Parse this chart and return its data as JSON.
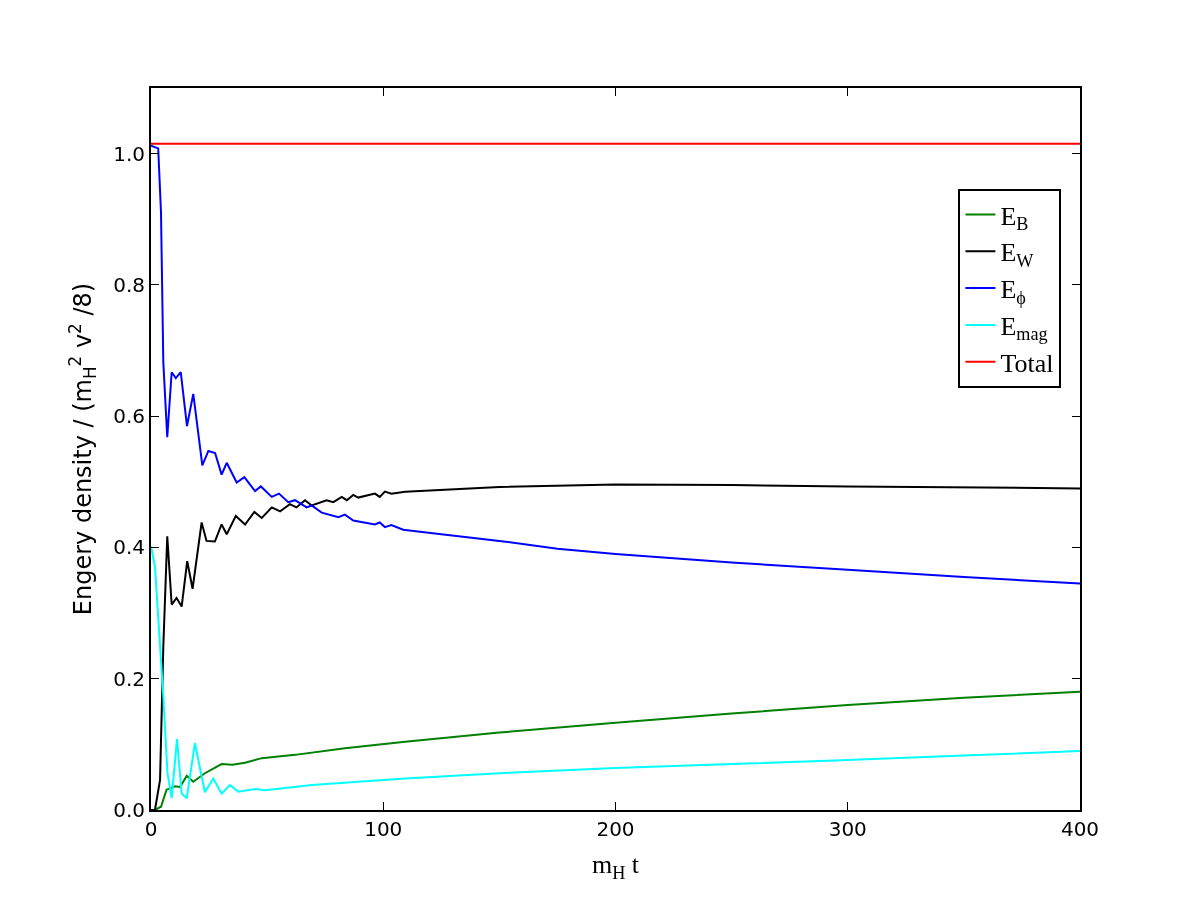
{
  "chart_data": {
    "type": "line",
    "xlabel": "m$_{H}$ t",
    "ylabel": "Engery density / (m$_{H}$$^{2}$ v$^{2}$ /8)",
    "xlim": [
      0,
      400
    ],
    "xticks": [
      0,
      100,
      200,
      300,
      400
    ],
    "ylim": [
      0,
      1.1
    ],
    "yticks": [
      {
        "value": 0,
        "label": "0.0"
      },
      {
        "value": 0.2,
        "label": "0.2"
      },
      {
        "value": 0.4,
        "label": "0.4"
      },
      {
        "value": 0.6,
        "label": "0.6"
      },
      {
        "value": 0.8,
        "label": "0.8"
      },
      {
        "value": 1,
        "label": "1.0"
      }
    ],
    "legend": "top right",
    "marker": "none",
    "line_style": "solid",
    "series": [
      {
        "name": "E$_{B}$",
        "color": "#008000",
        "x": [
          0,
          1.7,
          4.3,
          6.7,
          10.3,
          12.5,
          15.4,
          18.2,
          23.2,
          30.4,
          35,
          40.5,
          47.7,
          62,
          83.5,
          109.4,
          150,
          200,
          250,
          300,
          350,
          400
        ],
        "values": [
          0,
          0,
          0.005,
          0.031,
          0.036,
          0.035,
          0.052,
          0.043,
          0.056,
          0.07,
          0.069,
          0.072,
          0.079,
          0.084,
          0.094,
          0.104,
          0.118,
          0.133,
          0.147,
          0.16,
          0.171,
          0.18
        ]
      },
      {
        "name": "E$_{W}$",
        "color": "#000000",
        "x": [
          0,
          1.7,
          3.9,
          5.3,
          7,
          8.9,
          11,
          13.2,
          15.6,
          17.9,
          21.8,
          23.9,
          27.5,
          30.4,
          32.6,
          36.5,
          40.5,
          44.5,
          47.7,
          52,
          55.6,
          59.8,
          62.6,
          66.3,
          69.2,
          75.6,
          78.5,
          82.1,
          84.3,
          87.1,
          89.2,
          96.4,
          98.5,
          100.7,
          103.5,
          109.4,
          150,
          200,
          250,
          300,
          400
        ],
        "values": [
          0,
          0,
          0.046,
          0.249,
          0.417,
          0.313,
          0.323,
          0.31,
          0.379,
          0.337,
          0.438,
          0.41,
          0.409,
          0.435,
          0.42,
          0.448,
          0.435,
          0.454,
          0.445,
          0.461,
          0.455,
          0.466,
          0.461,
          0.472,
          0.464,
          0.472,
          0.469,
          0.477,
          0.472,
          0.48,
          0.476,
          0.482,
          0.477,
          0.485,
          0.482,
          0.485,
          0.492,
          0.496,
          0.495,
          0.493,
          0.49
        ]
      },
      {
        "name": "E$_{ϕ}$",
        "color": "#0000ff",
        "x": [
          0,
          3.1,
          4.3,
          5.3,
          7,
          8.9,
          10.7,
          12.8,
          15.5,
          18.2,
          22.1,
          24.7,
          27.6,
          30.4,
          32.6,
          36.9,
          40.2,
          44.8,
          47.3,
          52,
          55.1,
          59.1,
          62,
          67,
          69.2,
          73.5,
          80.7,
          83.5,
          87.1,
          96.4,
          98.5,
          100.7,
          103.5,
          108.6,
          125,
          150,
          175,
          200,
          250,
          300,
          350,
          400
        ],
        "values": [
          1.012,
          1.008,
          0.911,
          0.682,
          0.568,
          0.667,
          0.658,
          0.667,
          0.585,
          0.634,
          0.525,
          0.547,
          0.544,
          0.511,
          0.529,
          0.499,
          0.507,
          0.486,
          0.493,
          0.477,
          0.482,
          0.469,
          0.472,
          0.461,
          0.464,
          0.453,
          0.446,
          0.45,
          0.441,
          0.435,
          0.438,
          0.431,
          0.434,
          0.427,
          0.42,
          0.41,
          0.398,
          0.39,
          0.377,
          0.366,
          0.355,
          0.345
        ]
      },
      {
        "name": "E$_{mag}$",
        "color": "#00ffff",
        "x": [
          0,
          1.7,
          5.3,
          7.1,
          8.9,
          11.2,
          13.2,
          15.4,
          18.9,
          23.2,
          26.8,
          30.4,
          34,
          37.6,
          44.8,
          49,
          69.2,
          109.4,
          150,
          200,
          250,
          300,
          350,
          400
        ],
        "values": [
          0.402,
          0.371,
          0.173,
          0.056,
          0.018,
          0.108,
          0.025,
          0.018,
          0.102,
          0.027,
          0.048,
          0.025,
          0.038,
          0.028,
          0.032,
          0.03,
          0.038,
          0.048,
          0.056,
          0.064,
          0.07,
          0.076,
          0.083,
          0.09
        ]
      },
      {
        "name": "Total",
        "color": "#ff0000",
        "x": [
          0,
          400
        ],
        "values": [
          1.015,
          1.015
        ]
      }
    ]
  }
}
